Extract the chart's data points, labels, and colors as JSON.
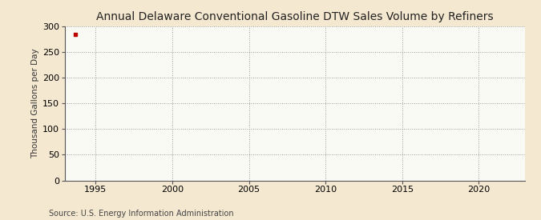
{
  "title": "Annual Delaware Conventional Gasoline DTW Sales Volume by Refiners",
  "ylabel": "Thousand Gallons per Day",
  "source": "Source: U.S. Energy Information Administration",
  "fig_background_color": "#f5e8d0",
  "plot_background_color": "#fafaf5",
  "xlim": [
    1993,
    2023
  ],
  "ylim": [
    0,
    300
  ],
  "yticks": [
    0,
    50,
    100,
    150,
    200,
    250,
    300
  ],
  "xticks": [
    1995,
    2000,
    2005,
    2010,
    2015,
    2020
  ],
  "data_x": [
    1993.7
  ],
  "data_y": [
    285
  ],
  "data_color": "#bb0000",
  "grid_color": "#999999",
  "title_fontsize": 10,
  "axis_label_fontsize": 7.5,
  "tick_fontsize": 8,
  "source_fontsize": 7
}
